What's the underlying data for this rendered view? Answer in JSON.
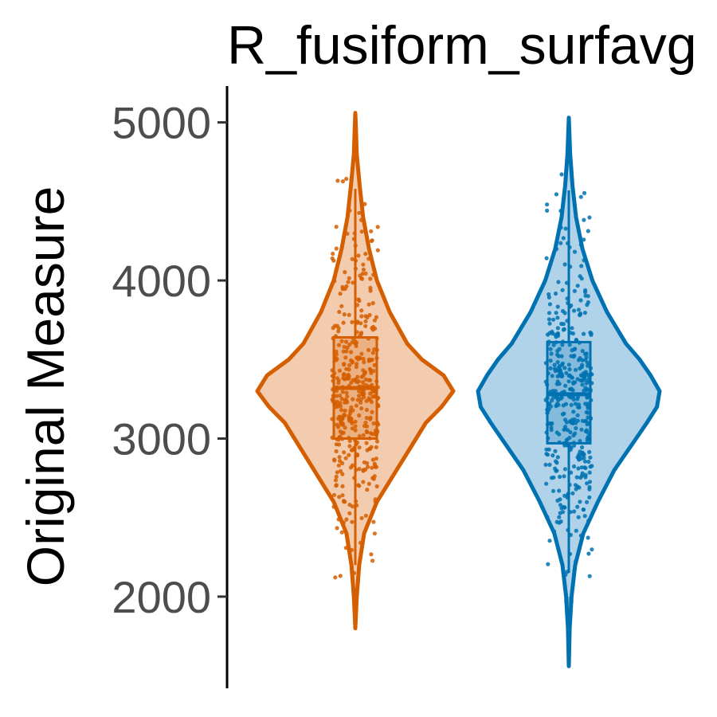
{
  "chart_data": {
    "type": "violin",
    "title": "R_fusiform_surfavg",
    "xlabel": "",
    "ylabel": "Original Measure",
    "ylim": [
      1420,
      5230
    ],
    "yticks": [
      2000,
      3000,
      4000,
      5000
    ],
    "yticklabels": [
      "2000",
      "3000",
      "4000",
      "5000"
    ],
    "grid": false,
    "legend": "none",
    "series": [
      {
        "color": "#D55E00",
        "fill": "#F3CCAF",
        "min": 1800,
        "max": 5060,
        "q1": 3000,
        "median": 3320,
        "q3": 3640,
        "whisker_low": 2200,
        "whisker_high": 4580,
        "outliers": [],
        "density": [
          [
            1800,
            0.0
          ],
          [
            2000,
            0.015
          ],
          [
            2200,
            0.04
          ],
          [
            2400,
            0.09
          ],
          [
            2600,
            0.22
          ],
          [
            2800,
            0.42
          ],
          [
            3000,
            0.62
          ],
          [
            3100,
            0.72
          ],
          [
            3200,
            0.88
          ],
          [
            3300,
            1.0
          ],
          [
            3400,
            0.9
          ],
          [
            3500,
            0.68
          ],
          [
            3600,
            0.53
          ],
          [
            3800,
            0.35
          ],
          [
            4000,
            0.22
          ],
          [
            4200,
            0.14
          ],
          [
            4400,
            0.08
          ],
          [
            4600,
            0.045
          ],
          [
            4800,
            0.015
          ],
          [
            5000,
            0.004
          ],
          [
            5060,
            0.0
          ]
        ]
      },
      {
        "color": "#0072B2",
        "fill": "#B0D3EA",
        "min": 1560,
        "max": 5030,
        "q1": 2970,
        "median": 3280,
        "q3": 3610,
        "whisker_low": 2150,
        "whisker_high": 4570,
        "outliers": [
          1970
        ],
        "density": [
          [
            1560,
            0.0
          ],
          [
            1800,
            0.01
          ],
          [
            2000,
            0.03
          ],
          [
            2200,
            0.07
          ],
          [
            2400,
            0.16
          ],
          [
            2600,
            0.32
          ],
          [
            2800,
            0.5
          ],
          [
            3000,
            0.74
          ],
          [
            3100,
            0.86
          ],
          [
            3200,
            0.97
          ],
          [
            3300,
            1.0
          ],
          [
            3400,
            0.9
          ],
          [
            3500,
            0.78
          ],
          [
            3600,
            0.63
          ],
          [
            3800,
            0.42
          ],
          [
            4000,
            0.26
          ],
          [
            4200,
            0.15
          ],
          [
            4400,
            0.08
          ],
          [
            4600,
            0.04
          ],
          [
            4800,
            0.015
          ],
          [
            5030,
            0.0
          ]
        ]
      }
    ]
  }
}
